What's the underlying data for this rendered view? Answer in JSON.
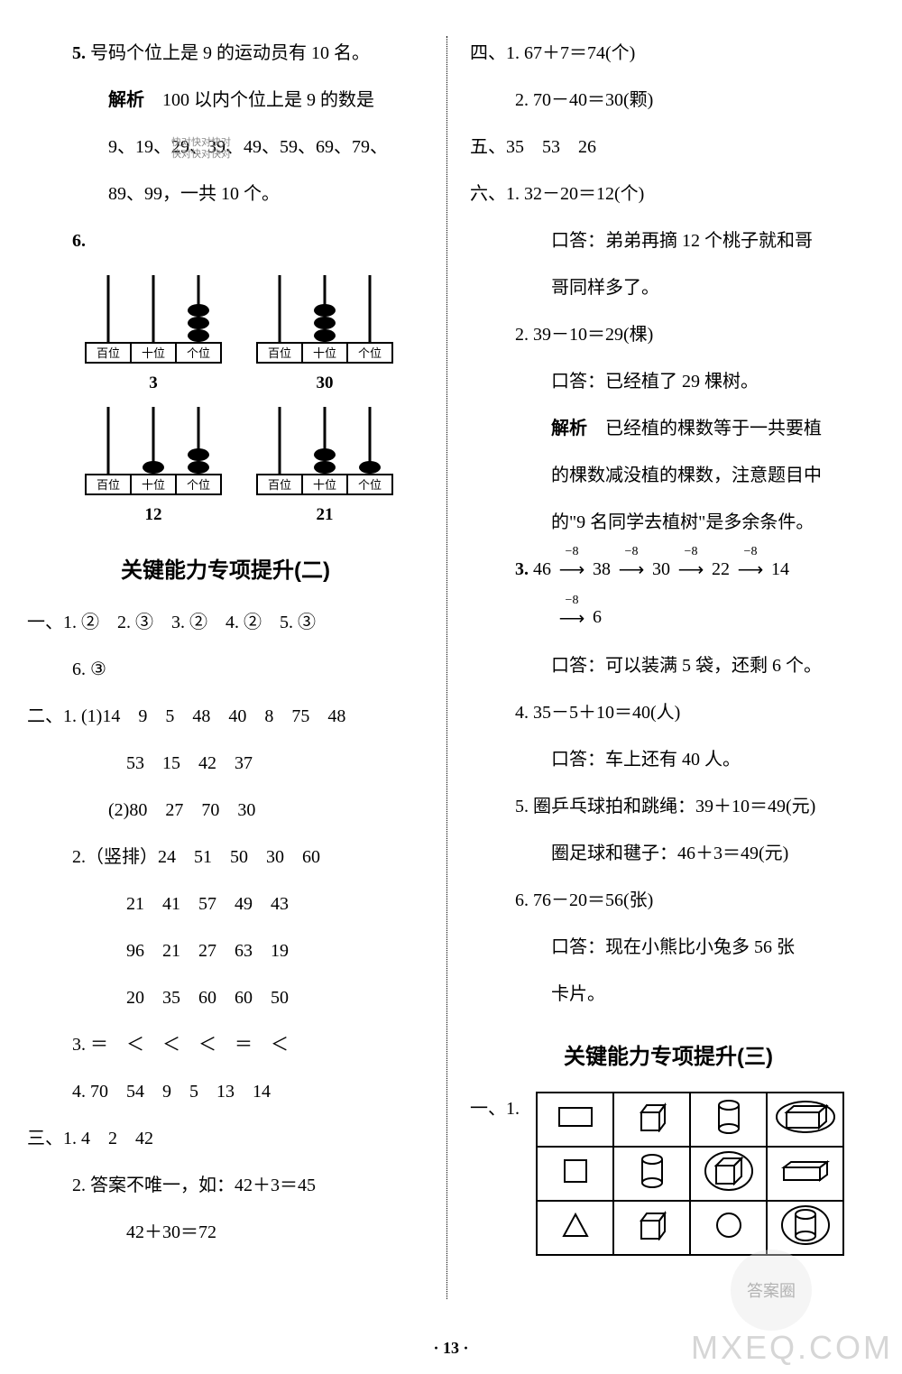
{
  "left": {
    "q5": {
      "text": "号码个位上是 9 的运动员有 10 名。",
      "analysis_label": "解析",
      "analysis_body1": "100 以内个位上是 9 的数是",
      "analysis_body2": "9、19、29、39、49、59、69、79、",
      "analysis_body3": "89、99，一共 10 个。"
    },
    "q6": {
      "label": "6.",
      "abacus": [
        {
          "beads": [
            0,
            0,
            3
          ],
          "labels": [
            "百位",
            "十位",
            "个位"
          ],
          "value": "3"
        },
        {
          "beads": [
            0,
            3,
            0
          ],
          "labels": [
            "百位",
            "十位",
            "个位"
          ],
          "value": "30"
        },
        {
          "beads": [
            0,
            1,
            2
          ],
          "labels": [
            "百位",
            "十位",
            "个位"
          ],
          "value": "12"
        },
        {
          "beads": [
            0,
            2,
            1
          ],
          "labels": [
            "百位",
            "十位",
            "个位"
          ],
          "value": "21"
        }
      ]
    },
    "section2_title": "关键能力专项提升(二)",
    "s1": {
      "row1": "一、1. ②　2. ③　3. ②　4. ②　5. ③",
      "row2": "6. ③"
    },
    "s2": {
      "head": "二、1. (1)14　9　5　48　40　8　75　48",
      "r2": "53　15　42　37",
      "r3": "(2)80　27　70　30",
      "r4": "2.（竖排）24　51　50　30　60",
      "r5": "21　41　57　49　43",
      "r6": "96　21　27　63　19",
      "r7": "20　35　60　60　50",
      "r8": "3. ＝　＜　＜　＜　＝　＜",
      "r9": "4. 70　54　9　5　13　14"
    },
    "s3": {
      "r1": "三、1. 4　2　42",
      "r2": "2. 答案不唯一，如：42＋3＝45",
      "r3": "42＋30＝72"
    }
  },
  "right": {
    "s4": {
      "r1": "四、1. 67＋7＝74(个)",
      "r2": "2. 70－40＝30(颗)"
    },
    "s5": "五、35　53　26",
    "s6": {
      "r1": "六、1. 32－20＝12(个)",
      "r2": "口答：弟弟再摘 12 个桃子就和哥",
      "r3": "哥同样多了。",
      "r4": "2. 39－10＝29(棵)",
      "r5": "口答：已经植了 29 棵树。",
      "r6a": "解析",
      "r6b": "已经植的棵数等于一共要植",
      "r7": "的棵数减没植的棵数，注意题目中",
      "r8": "的\"9 名同学去植树\"是多余条件。",
      "r9": "3. 46 → 38 → 30 → 22 → 14",
      "r9_labels": "−8",
      "r10": "→ 6",
      "r11": "口答：可以装满 5 袋，还剩 6 个。",
      "r12": "4. 35－5＋10＝40(人)",
      "r13": "口答：车上还有 40 人。",
      "r14": "5. 圈乒乓球拍和跳绳：39＋10＝49(元)",
      "r15": "圈足球和毽子：46＋3＝49(元)",
      "r16": "6. 76－20＝56(张)",
      "r17": "口答：现在小熊比小兔多 56 张",
      "r18": "卡片。"
    },
    "section3_title": "关键能力专项提升(三)",
    "s3_q1": "一、1."
  },
  "footer": "· 13 ·",
  "watermark_tl1": "快对快对快对",
  "watermark_tl2": "快对快对快对",
  "watermark_br": "MXEQ.COM",
  "watermark_bubble": "答案圈",
  "colors": {
    "text": "#000000",
    "bg": "#ffffff",
    "divider": "#000000"
  }
}
